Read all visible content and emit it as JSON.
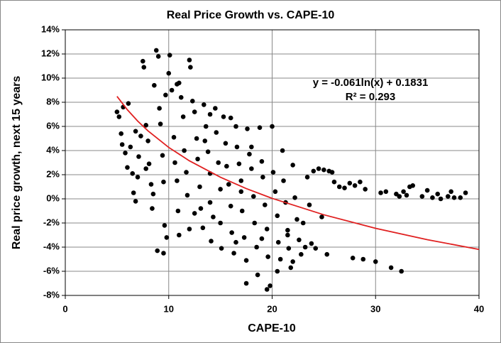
{
  "chart_data": {
    "type": "scatter",
    "title": "Real Price Growth vs. CAPE-10",
    "x_label": "CAPE-10",
    "y_label": "Real price growth, next 15 years",
    "annotations": [
      "y = -0.061ln(x) + 0.1831",
      "R² = 0.293"
    ],
    "xlim": [
      0,
      40
    ],
    "xticks": [
      0,
      10,
      20,
      30,
      40
    ],
    "ylim": [
      -8,
      14
    ],
    "yticks": [
      {
        "value": -8,
        "label": "-8%"
      },
      {
        "value": -6,
        "label": "-6%"
      },
      {
        "value": -4,
        "label": "-4%"
      },
      {
        "value": -2,
        "label": "-2%"
      },
      {
        "value": 0,
        "label": "0%"
      },
      {
        "value": 2,
        "label": "2%"
      },
      {
        "value": 4,
        "label": "4%"
      },
      {
        "value": 6,
        "label": "6%"
      },
      {
        "value": 8,
        "label": "8%"
      },
      {
        "value": 10,
        "label": "10%"
      },
      {
        "value": 12,
        "label": "12%"
      },
      {
        "value": 14,
        "label": "14%"
      }
    ],
    "grid": true,
    "series": [
      {
        "type": "scatter",
        "color": "#000000",
        "x": [
          5,
          5.2,
          5.4,
          5.5,
          5.6,
          5.8,
          6,
          6.1,
          6.3,
          6.5,
          6.6,
          6.8,
          7,
          7.1,
          7.3,
          7.5,
          7.6,
          7.8,
          8,
          8.1,
          8.3,
          8.4,
          8.6,
          8.8,
          9,
          9.1,
          9.2,
          9.4,
          9.5,
          9.6,
          8.9,
          9.8,
          10,
          10.1,
          10.3,
          10.5,
          10.6,
          10.8,
          10.9,
          11,
          11.2,
          11.4,
          11.5,
          11.7,
          11.8,
          12,
          12.1,
          12.3,
          12.5,
          12.7,
          12.8,
          13,
          13.1,
          13.3,
          13.4,
          13.6,
          13.8,
          14,
          14.1,
          14.3,
          14.5,
          14.6,
          14.8,
          15,
          15.1,
          15.3,
          15.5,
          15.6,
          15.8,
          16,
          16.1,
          16.3,
          16.5,
          16.6,
          16.8,
          17,
          17.1,
          17.3,
          17.5,
          17.6,
          17.8,
          18,
          18.2,
          18.3,
          18.5,
          18.6,
          18.8,
          19,
          19.1,
          19.3,
          19.5,
          19.6,
          19.8,
          20,
          20.1,
          20.3,
          20.5,
          20.6,
          20.8,
          21,
          21.1,
          21.3,
          21.5,
          21.6,
          21.8,
          22,
          22.2,
          22.4,
          22.6,
          22.8,
          23,
          23.2,
          23.4,
          23.6,
          23.8,
          24,
          24.2,
          24.5,
          24.8,
          25,
          25.3,
          25.5,
          25.8,
          26,
          26.5,
          27,
          27.5,
          27.8,
          28,
          28.5,
          28.8,
          29,
          30,
          30.5,
          31,
          31.5,
          32,
          32.3,
          32.5,
          32.7,
          33,
          33.3,
          33.6,
          34.5,
          35,
          35.5,
          36,
          36.3,
          37,
          37.3,
          37.6,
          38.2,
          38.7,
          9.5,
          11,
          12.5,
          16.5,
          17.5,
          19.5,
          16,
          14,
          12,
          10.8,
          9.7,
          6.8,
          7.8,
          8.5,
          13.5,
          18,
          20.5,
          22,
          21.5,
          15,
          14,
          17,
          19
        ],
        "values": [
          7.2,
          6.8,
          5.4,
          4.5,
          7.6,
          3.8,
          2.6,
          7.9,
          4.3,
          2.1,
          0.5,
          -0.2,
          1.8,
          3.5,
          5.2,
          11.4,
          10.9,
          6.1,
          4.8,
          2.9,
          1.2,
          -0.8,
          9.4,
          12.3,
          11.8,
          7.5,
          6.2,
          3.6,
          1.4,
          -2.2,
          -4.3,
          -3.2,
          10.4,
          11.9,
          9.0,
          5.1,
          3.0,
          1.5,
          -1.0,
          9.6,
          8.4,
          6.8,
          4.0,
          2.2,
          0.3,
          -2.5,
          10.9,
          8.1,
          7.2,
          5.0,
          3.3,
          1.0,
          -0.8,
          -2.4,
          7.8,
          6.0,
          3.9,
          2.1,
          -3.5,
          -1.5,
          7.5,
          5.5,
          3.0,
          0.8,
          -4.1,
          6.8,
          4.6,
          2.7,
          1.2,
          -0.6,
          -2.8,
          -4.5,
          6.0,
          4.3,
          2.9,
          1.5,
          -1.0,
          -3.2,
          -5.1,
          5.8,
          3.7,
          2.5,
          0.2,
          -2.0,
          -4.0,
          -6.3,
          5.9,
          3.1,
          1.8,
          -0.5,
          -2.5,
          -4.8,
          -7.2,
          6.0,
          2.2,
          0.6,
          -1.4,
          -3.6,
          -5.0,
          4.0,
          1.5,
          -0.3,
          -2.6,
          -4.1,
          -5.7,
          2.8,
          0.1,
          -1.7,
          -3.4,
          -4.6,
          -2.0,
          -4.0,
          1.8,
          -0.5,
          -3.7,
          2.3,
          -4.1,
          2.5,
          -1.5,
          2.4,
          -4.6,
          2.3,
          2.2,
          1.4,
          1.0,
          0.9,
          1.3,
          -4.9,
          1.1,
          1.4,
          -5.0,
          0.8,
          -5.2,
          0.5,
          0.6,
          -5.7,
          0.4,
          0.2,
          -6.0,
          0.6,
          0.3,
          1.0,
          1.1,
          0.2,
          0.7,
          0.1,
          0.4,
          0.0,
          0.2,
          0.6,
          0.1,
          0.1,
          0.5,
          -4.5,
          -3.0,
          -1.2,
          -3.6,
          -7.0,
          -7.5,
          6.7,
          7.0,
          11.5,
          9.5,
          8.6,
          5.6,
          2.5,
          0.4,
          4.8,
          4.3,
          -6.0,
          -5.2,
          -3.0,
          -2.0,
          -0.3,
          0.6,
          -3.3
        ]
      },
      {
        "type": "line",
        "color": "#e02020",
        "x": [
          5,
          6,
          7,
          8,
          10,
          12,
          15,
          17.5,
          20,
          25,
          30,
          35,
          40
        ],
        "values": [
          8.49,
          7.38,
          6.44,
          5.63,
          4.26,
          3.15,
          1.79,
          0.85,
          0.04,
          -1.32,
          -2.44,
          -3.38,
          -4.19
        ]
      }
    ]
  }
}
